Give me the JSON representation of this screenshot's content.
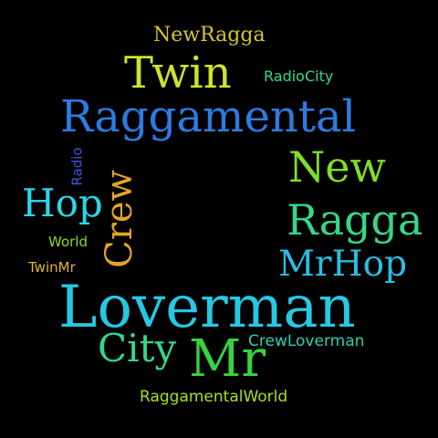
{
  "words": [
    {
      "id": "w-newragga",
      "text": "NewRagga",
      "color": "#d4c52c"
    },
    {
      "id": "w-twin",
      "text": "Twin",
      "color": "#cfe22d"
    },
    {
      "id": "w-radiocity",
      "text": "RadioCity",
      "color": "#35d78a"
    },
    {
      "id": "w-raggamental",
      "text": "Raggamental",
      "color": "#2d7be0"
    },
    {
      "id": "w-new",
      "text": "New",
      "color": "#7fe028"
    },
    {
      "id": "w-radio-vertical",
      "text": "Radio",
      "color": "#3f56d3"
    },
    {
      "id": "w-crew-vertical",
      "text": "Crew",
      "color": "#e4a52a"
    },
    {
      "id": "w-hop",
      "text": "Hop",
      "color": "#2bd6e8"
    },
    {
      "id": "w-ragga",
      "text": "Ragga",
      "color": "#35d78a"
    },
    {
      "id": "w-world",
      "text": "World",
      "color": "#8fd81e"
    },
    {
      "id": "w-mrhop",
      "text": "MrHop",
      "color": "#2bbde5"
    },
    {
      "id": "w-twinmr",
      "text": "TwinMr",
      "color": "#e4b42a"
    },
    {
      "id": "w-loverman",
      "text": "Loverman",
      "color": "#27c8e3"
    },
    {
      "id": "w-city",
      "text": "City",
      "color": "#35d78a"
    },
    {
      "id": "w-crewloverman",
      "text": "CrewLoverman",
      "color": "#2bcfb0"
    },
    {
      "id": "w-mr",
      "text": "Mr",
      "color": "#39d23d"
    },
    {
      "id": "w-raggamentalworld",
      "text": "RaggamentalWorld",
      "color": "#a9df1f"
    }
  ]
}
